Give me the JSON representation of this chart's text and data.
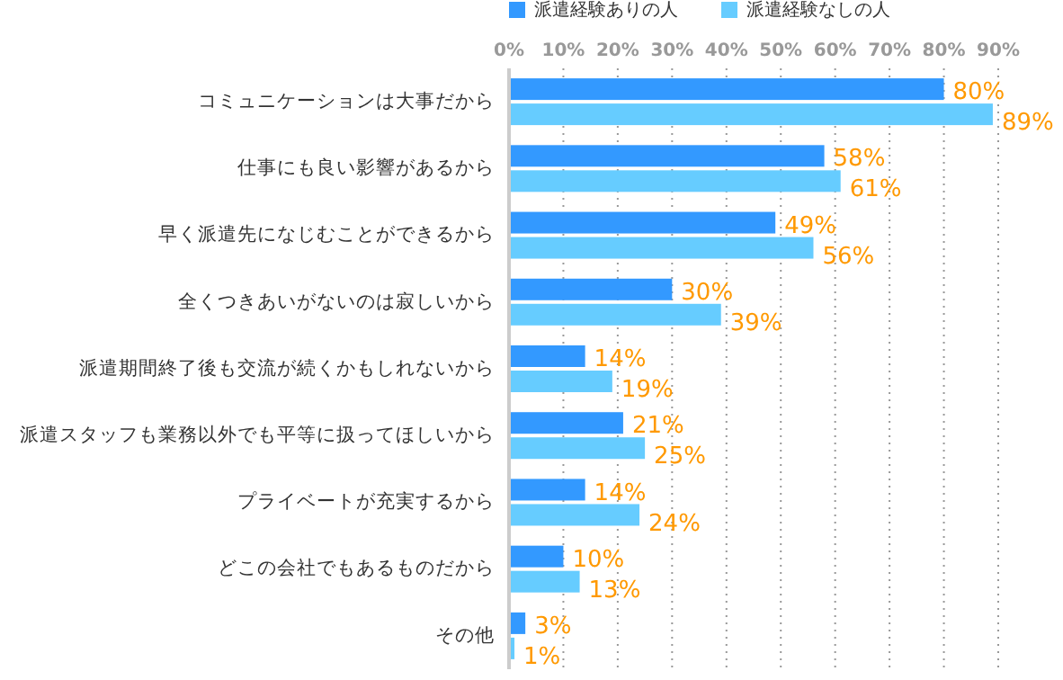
{
  "chart_data": {
    "type": "bar",
    "orientation": "horizontal",
    "categories": [
      "コミュニケーションは大事だから",
      "仕事にも良い影響があるから",
      "早く派遣先になじむことができるから",
      "全くつきあいがないのは寂しいから",
      "派遣期間終了後も交流が続くかもしれないから",
      "派遣スタッフも業務以外でも平等に扱ってほしいから",
      "プライベートが充実するから",
      "どこの会社でもあるものだから",
      "その他"
    ],
    "series": [
      {
        "name": "派遣経験ありの人",
        "color": "#3399ff",
        "values": [
          80,
          58,
          49,
          30,
          14,
          21,
          14,
          10,
          3
        ],
        "value_labels": [
          "80%",
          "58%",
          "49%",
          "30%",
          "14%",
          "21%",
          "14%",
          "10%",
          "3%"
        ]
      },
      {
        "name": "派遣経験なしの人",
        "color": "#66ccff",
        "values": [
          89,
          61,
          56,
          39,
          19,
          25,
          24,
          13,
          1
        ],
        "value_labels": [
          "89%",
          "61%",
          "56%",
          "39%",
          "19%",
          "25%",
          "24%",
          "13%",
          "1%"
        ]
      }
    ],
    "xlim": [
      0,
      90
    ],
    "xticks": [
      {
        "value": 0,
        "label": "0%"
      },
      {
        "value": 10,
        "label": "10%"
      },
      {
        "value": 20,
        "label": "20%"
      },
      {
        "value": 30,
        "label": "30%"
      },
      {
        "value": 40,
        "label": "40%"
      },
      {
        "value": 50,
        "label": "50%"
      },
      {
        "value": 60,
        "label": "60%"
      },
      {
        "value": 70,
        "label": "70%"
      },
      {
        "value": 80,
        "label": "80%"
      },
      {
        "value": 90,
        "label": "90%"
      }
    ],
    "grid": "x",
    "legend": "top left"
  }
}
